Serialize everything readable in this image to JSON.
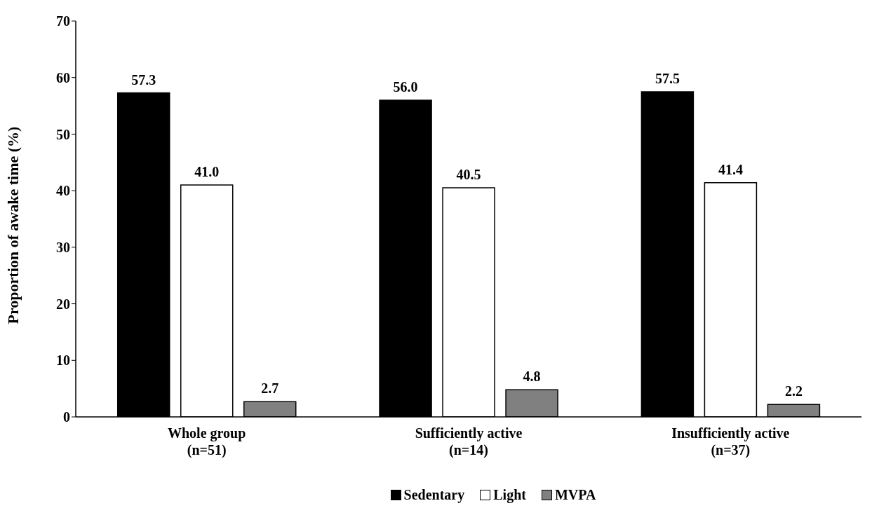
{
  "chart_data": {
    "type": "bar",
    "ylabel": "Proportion of awake time (%)",
    "categories": [
      "Whole group\n(n=51)",
      "Sufficiently active\n(n=14)",
      "Insufficiently active\n(n=37)"
    ],
    "series": [
      {
        "name": "Sedentary",
        "color": "#000000",
        "values": [
          57.3,
          56.0,
          57.5
        ],
        "value_labels": [
          "57.3",
          "56.0",
          "57.5"
        ]
      },
      {
        "name": "Light",
        "color": "#ffffff",
        "values": [
          41.0,
          40.5,
          41.4
        ],
        "value_labels": [
          "41.0",
          "40.5",
          "41.4"
        ]
      },
      {
        "name": "MVPA",
        "color": "#808080",
        "values": [
          2.7,
          4.8,
          2.2
        ],
        "value_labels": [
          "2.7",
          "4.8",
          "2.2"
        ]
      }
    ],
    "ylim": [
      0,
      70
    ],
    "yticks": [
      0,
      10,
      20,
      30,
      40,
      50,
      60,
      70
    ],
    "grid": false,
    "legend": "bottom"
  }
}
